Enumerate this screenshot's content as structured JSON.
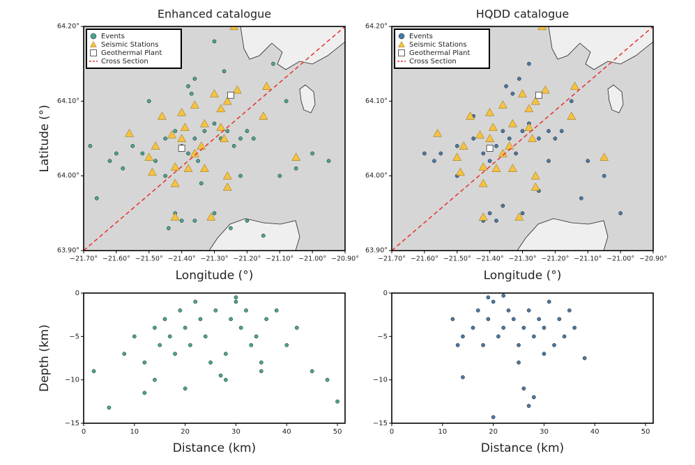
{
  "chart_data": [
    {
      "type": "map",
      "title": "Enhanced catalogue",
      "xlabel": "Longitude (°)",
      "ylabel": "Latitude (°)",
      "xlim": [
        -21.7,
        -20.9
      ],
      "ylim": [
        63.9,
        64.2
      ],
      "xticks": [
        {
          "value": -21.7,
          "label": "−21.70°"
        },
        {
          "value": -21.6,
          "label": "−21.60°"
        },
        {
          "value": -21.5,
          "label": "−21.50°"
        },
        {
          "value": -21.4,
          "label": "−21.40°"
        },
        {
          "value": -21.3,
          "label": "−21.30°"
        },
        {
          "value": -21.2,
          "label": "−21.20°"
        },
        {
          "value": -21.1,
          "label": "−21.10°"
        },
        {
          "value": -21.0,
          "label": "−21.00°"
        },
        {
          "value": -20.9,
          "label": "−20.90°"
        }
      ],
      "yticks": [
        {
          "value": 63.9,
          "label": "63.90°"
        },
        {
          "value": 64.0,
          "label": "64.00°"
        },
        {
          "value": 64.1,
          "label": "64.10°"
        },
        {
          "value": 64.2,
          "label": "64.20°"
        }
      ],
      "legend": "upper left",
      "background": "#d6d6d6",
      "series": [
        {
          "name": "Events",
          "marker": "circle",
          "color": "#4aa58f",
          "x": [
            -21.6,
            -21.62,
            -21.55,
            -21.52,
            -21.58,
            -21.48,
            -21.45,
            -21.42,
            -21.4,
            -21.38,
            -21.36,
            -21.35,
            -21.33,
            -21.3,
            -21.28,
            -21.26,
            -21.24,
            -21.22,
            -21.2,
            -21.18,
            -21.38,
            -21.37,
            -21.36,
            -21.4,
            -21.44,
            -21.42,
            -21.36,
            -21.3,
            -21.25,
            -21.2,
            -21.15,
            -21.1,
            -21.05,
            -21.0,
            -20.95,
            -21.12,
            -21.08,
            -21.66,
            -21.68,
            -21.5,
            -21.3,
            -21.27,
            -21.22,
            -21.45,
            -21.34
          ],
          "y": [
            64.03,
            64.02,
            64.04,
            64.03,
            64.01,
            64.02,
            64.05,
            64.06,
            64.04,
            64.03,
            64.05,
            64.02,
            64.06,
            64.07,
            64.05,
            64.06,
            64.04,
            64.05,
            64.06,
            64.05,
            64.12,
            64.11,
            64.13,
            63.94,
            63.93,
            63.95,
            63.94,
            63.95,
            63.93,
            63.94,
            63.92,
            64.0,
            64.01,
            64.03,
            64.02,
            64.15,
            64.1,
            63.97,
            64.04,
            64.1,
            64.18,
            64.14,
            64.0,
            64.0,
            63.99
          ]
        },
        {
          "name": "Seismic Stations",
          "marker": "triangle",
          "color": "#f5c242",
          "x": [
            -21.24,
            -21.14,
            -21.23,
            -21.3,
            -21.26,
            -21.28,
            -21.36,
            -21.4,
            -21.46,
            -21.39,
            -21.33,
            -21.28,
            -21.27,
            -21.4,
            -21.43,
            -21.56,
            -21.48,
            -21.34,
            -21.36,
            -21.5,
            -21.42,
            -21.38,
            -21.33,
            -21.49,
            -21.26,
            -21.15,
            -21.05,
            -21.42,
            -21.26,
            -21.42,
            -21.31
          ],
          "y": [
            64.2,
            64.12,
            64.115,
            64.11,
            64.1,
            64.09,
            64.095,
            64.085,
            64.08,
            64.065,
            64.07,
            64.065,
            64.05,
            64.05,
            64.055,
            64.057,
            64.04,
            64.04,
            64.03,
            64.025,
            64.012,
            64.01,
            64.01,
            64.005,
            64.0,
            64.08,
            64.025,
            63.99,
            63.985,
            63.945,
            63.945
          ]
        },
        {
          "name": "Geothermal Plant",
          "marker": "square",
          "color": "#ffffff",
          "x": [
            -21.25,
            -21.4
          ],
          "y": [
            64.108,
            64.037
          ]
        },
        {
          "name": "Cross Section",
          "marker": "dashed-line",
          "color": "#e8302a",
          "x": [
            -21.7,
            -20.9
          ],
          "y": [
            63.9,
            64.2
          ]
        }
      ]
    },
    {
      "type": "map",
      "title": "HQDD catalogue",
      "xlabel": "Longitude (°)",
      "xlim": [
        -21.7,
        -20.9
      ],
      "ylim": [
        63.9,
        64.2
      ],
      "xticks": [
        {
          "value": -21.7,
          "label": "−21.70°"
        },
        {
          "value": -21.6,
          "label": "−21.60°"
        },
        {
          "value": -21.5,
          "label": "−21.50°"
        },
        {
          "value": -21.4,
          "label": "−21.40°"
        },
        {
          "value": -21.3,
          "label": "−21.30°"
        },
        {
          "value": -21.2,
          "label": "−21.20°"
        },
        {
          "value": -21.1,
          "label": "−21.10°"
        },
        {
          "value": -21.0,
          "label": "−21.00°"
        },
        {
          "value": -20.9,
          "label": "−20.90°"
        }
      ],
      "yticks": [
        {
          "value": 63.9,
          "label": "63.90°"
        },
        {
          "value": 64.0,
          "label": "64.00°"
        },
        {
          "value": 64.1,
          "label": "64.10°"
        },
        {
          "value": 64.2,
          "label": "64.20°"
        }
      ],
      "legend": "upper left",
      "background": "#d6d6d6",
      "series": [
        {
          "name": "Events",
          "marker": "circle",
          "color": "#4a79a5",
          "x": [
            -21.6,
            -21.57,
            -21.55,
            -21.5,
            -21.45,
            -21.42,
            -21.4,
            -21.38,
            -21.36,
            -21.34,
            -21.32,
            -21.3,
            -21.28,
            -21.25,
            -21.22,
            -21.2,
            -21.18,
            -21.35,
            -21.33,
            -21.31,
            -21.4,
            -21.38,
            -21.42,
            -21.36,
            -21.3,
            -21.1,
            -21.05,
            -21.0,
            -21.15,
            -21.25,
            -21.45,
            -21.5,
            -21.28,
            -21.22,
            -21.12
          ],
          "y": [
            64.03,
            64.02,
            64.03,
            64.04,
            64.05,
            64.03,
            64.02,
            64.04,
            64.06,
            64.05,
            64.03,
            64.06,
            64.07,
            64.05,
            64.06,
            64.05,
            64.06,
            64.12,
            64.11,
            64.13,
            63.95,
            63.94,
            63.94,
            63.96,
            63.95,
            64.02,
            64.0,
            63.95,
            64.1,
            63.98,
            64.08,
            64.0,
            64.15,
            64.02,
            63.97
          ]
        },
        {
          "name": "Seismic Stations",
          "marker": "triangle",
          "color": "#f5c242",
          "x": [
            -21.24,
            -21.14,
            -21.23,
            -21.3,
            -21.26,
            -21.28,
            -21.36,
            -21.4,
            -21.46,
            -21.39,
            -21.33,
            -21.28,
            -21.27,
            -21.4,
            -21.43,
            -21.56,
            -21.48,
            -21.34,
            -21.36,
            -21.5,
            -21.42,
            -21.38,
            -21.33,
            -21.49,
            -21.26,
            -21.15,
            -21.05,
            -21.42,
            -21.26,
            -21.42,
            -21.31
          ],
          "y": [
            64.2,
            64.12,
            64.115,
            64.11,
            64.1,
            64.09,
            64.095,
            64.085,
            64.08,
            64.065,
            64.07,
            64.065,
            64.05,
            64.05,
            64.055,
            64.057,
            64.04,
            64.04,
            64.03,
            64.025,
            64.012,
            64.01,
            64.01,
            64.005,
            64.0,
            64.08,
            64.025,
            63.99,
            63.985,
            63.945,
            63.945
          ]
        },
        {
          "name": "Geothermal Plant",
          "marker": "square",
          "color": "#ffffff",
          "x": [
            -21.25,
            -21.4
          ],
          "y": [
            64.108,
            64.037
          ]
        },
        {
          "name": "Cross Section",
          "marker": "dashed-line",
          "color": "#e8302a",
          "x": [
            -21.7,
            -20.9
          ],
          "y": [
            63.9,
            64.2
          ]
        }
      ]
    },
    {
      "type": "scatter",
      "xlabel": "Distance (km)",
      "ylabel": "Depth (km)",
      "xlim": [
        0,
        51.5
      ],
      "ylim": [
        -15,
        0
      ],
      "xticks": [
        0,
        10,
        20,
        30,
        40,
        50
      ],
      "yticks": [
        {
          "value": -15,
          "label": "−15"
        },
        {
          "value": -10,
          "label": "−10"
        },
        {
          "value": -5,
          "label": "−5"
        },
        0
      ],
      "background": "#ffffff",
      "series": [
        {
          "marker": "circle",
          "color": "#4aa58f",
          "x": [
            2,
            5,
            8,
            10,
            12,
            14,
            15,
            16,
            17,
            18,
            19,
            20,
            21,
            22,
            23,
            24,
            25,
            26,
            27,
            28,
            29,
            30,
            31,
            32,
            33,
            34,
            35,
            36,
            38,
            40,
            42,
            45,
            48,
            50,
            14,
            20,
            28,
            30,
            35,
            12
          ],
          "y": [
            -9,
            -13.2,
            -7,
            -5,
            -8,
            -4,
            -6,
            -3,
            -5,
            -7,
            -2,
            -4,
            -6,
            -1,
            -3,
            -5,
            -8,
            -2,
            -9.5,
            -7,
            -3,
            -1,
            -4,
            -2,
            -6,
            -5,
            -8,
            -3,
            -2,
            -6,
            -4,
            -9,
            -10,
            -12.5,
            -10,
            -11,
            -10,
            -0.5,
            -9,
            -11.5
          ]
        }
      ]
    },
    {
      "type": "scatter",
      "xlabel": "Distance (km)",
      "xlim": [
        0,
        51.5
      ],
      "ylim": [
        -15,
        0
      ],
      "xticks": [
        0,
        10,
        20,
        30,
        40,
        50
      ],
      "yticks": [
        {
          "value": -15,
          "label": "−15"
        },
        {
          "value": -10,
          "label": "−10"
        },
        {
          "value": -5,
          "label": "−5"
        },
        0
      ],
      "background": "#ffffff",
      "series": [
        {
          "marker": "circle",
          "color": "#4a79a5",
          "x": [
            12,
            14,
            16,
            17,
            18,
            19,
            20,
            21,
            22,
            23,
            24,
            25,
            26,
            27,
            28,
            29,
            30,
            31,
            32,
            33,
            34,
            35,
            36,
            14,
            20,
            26,
            27,
            28,
            38,
            19,
            22,
            30,
            25,
            13
          ],
          "y": [
            -3,
            -5,
            -4,
            -2,
            -6,
            -3,
            -1,
            -5,
            -4,
            -2,
            -3,
            -6,
            -4,
            -2,
            -5,
            -3,
            -4,
            -1,
            -6,
            -3,
            -5,
            -2,
            -4,
            -9.7,
            -14.3,
            -11,
            -13,
            -12,
            -7.5,
            -0.5,
            -0.3,
            -7,
            -8,
            -6
          ]
        }
      ]
    }
  ]
}
